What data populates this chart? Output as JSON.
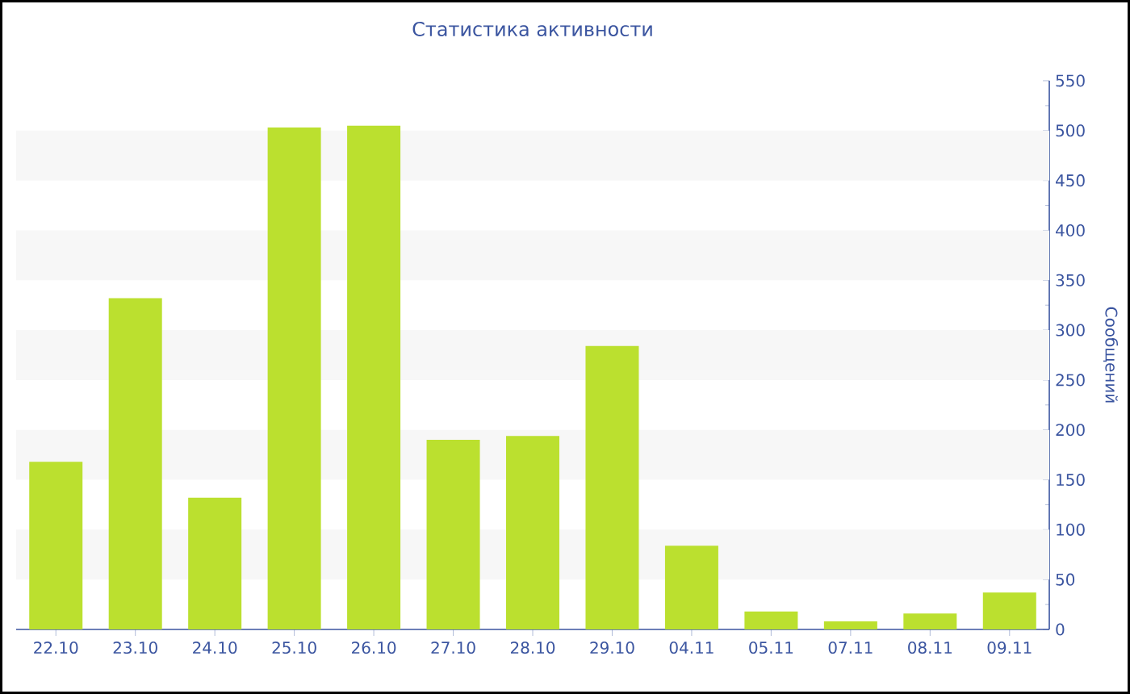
{
  "chart_data": {
    "type": "bar",
    "title": "Статистика активности",
    "ylabel": "Сообщений",
    "categories": [
      "22.10",
      "23.10",
      "24.10",
      "25.10",
      "26.10",
      "27.10",
      "28.10",
      "29.10",
      "04.11",
      "05.11",
      "07.11",
      "08.11",
      "09.11"
    ],
    "values": [
      168,
      332,
      132,
      503,
      505,
      190,
      194,
      284,
      84,
      18,
      8,
      16,
      37
    ],
    "color": "#bbe02f",
    "ylim": [
      0,
      550
    ],
    "yticks": [
      0,
      50,
      100,
      150,
      200,
      250,
      300,
      350,
      400,
      450,
      500,
      550
    ],
    "bands": [
      {
        "axis": "y",
        "from": 50,
        "to": 100,
        "color": "#f7f7f7"
      },
      {
        "axis": "y",
        "from": 150,
        "to": 200,
        "color": "#f7f7f7"
      },
      {
        "axis": "y",
        "from": 250,
        "to": 300,
        "color": "#f7f7f7"
      },
      {
        "axis": "y",
        "from": 350,
        "to": 400,
        "color": "#f7f7f7"
      },
      {
        "axis": "y",
        "from": 450,
        "to": 500,
        "color": "#f7f7f7"
      }
    ]
  }
}
